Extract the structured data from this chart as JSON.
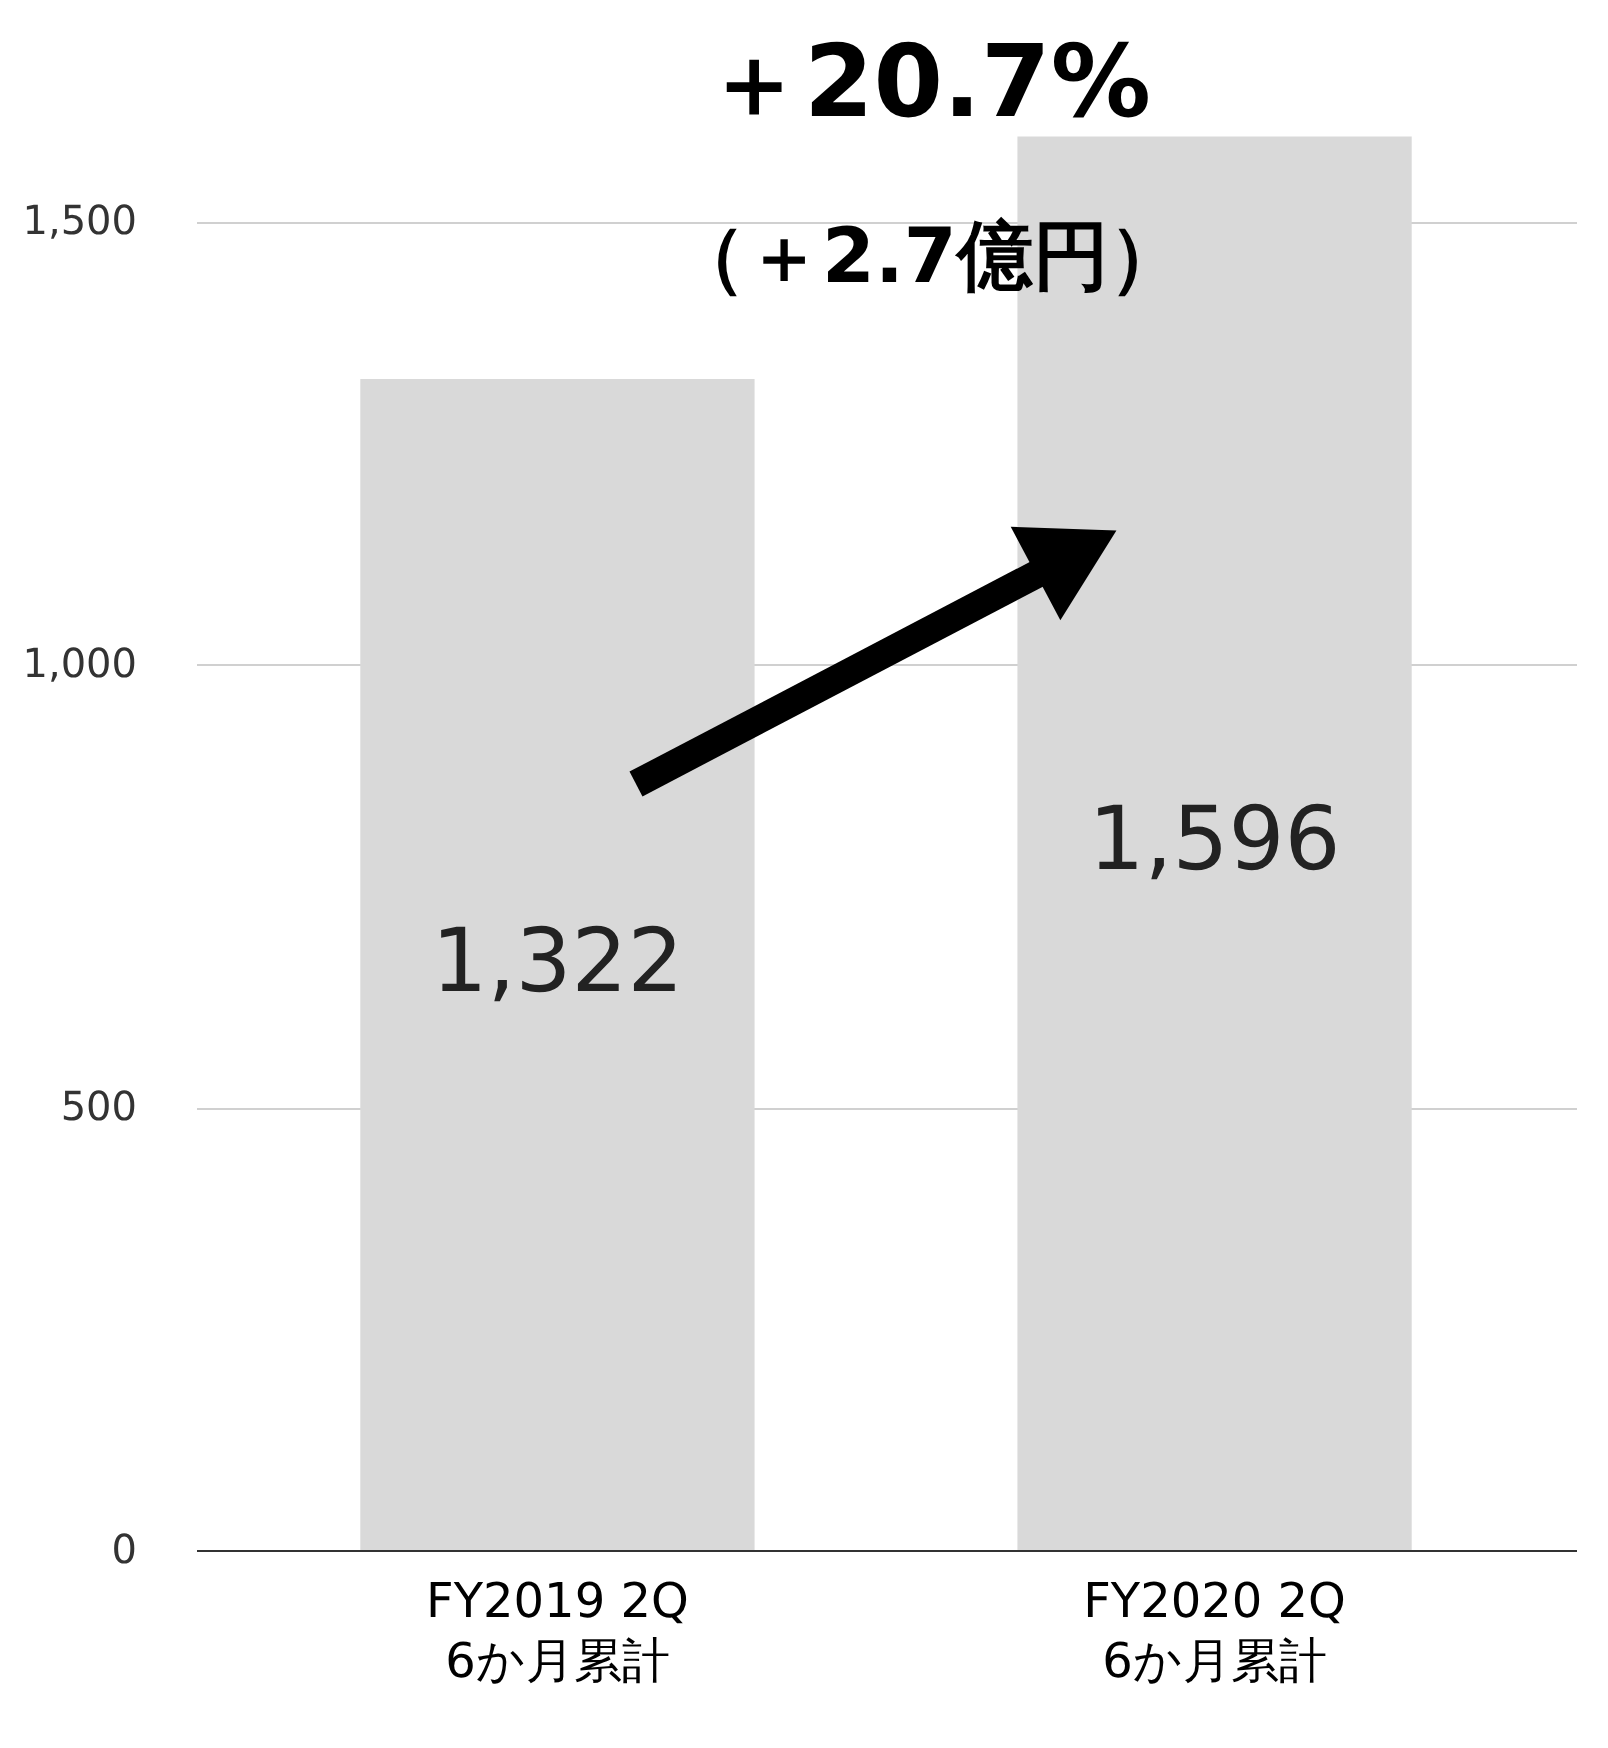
{
  "chart_data": {
    "type": "bar",
    "categories": [
      "FY2019 2Q\n6か月累計",
      "FY2020 2Q\n6か月累計"
    ],
    "values": [
      1322,
      1596
    ],
    "color": "#d9d9d9",
    "value_labels": [
      "1,322",
      "1,596"
    ],
    "ylim": [
      0,
      1750
    ],
    "yticks": [
      0,
      500,
      {
        "value": 1000,
        "label": "1,000"
      },
      {
        "value": 1500,
        "label": "1,500"
      }
    ],
    "grid": "y",
    "annotations": [
      "＋20.7%",
      "（＋2.7億円）"
    ]
  }
}
